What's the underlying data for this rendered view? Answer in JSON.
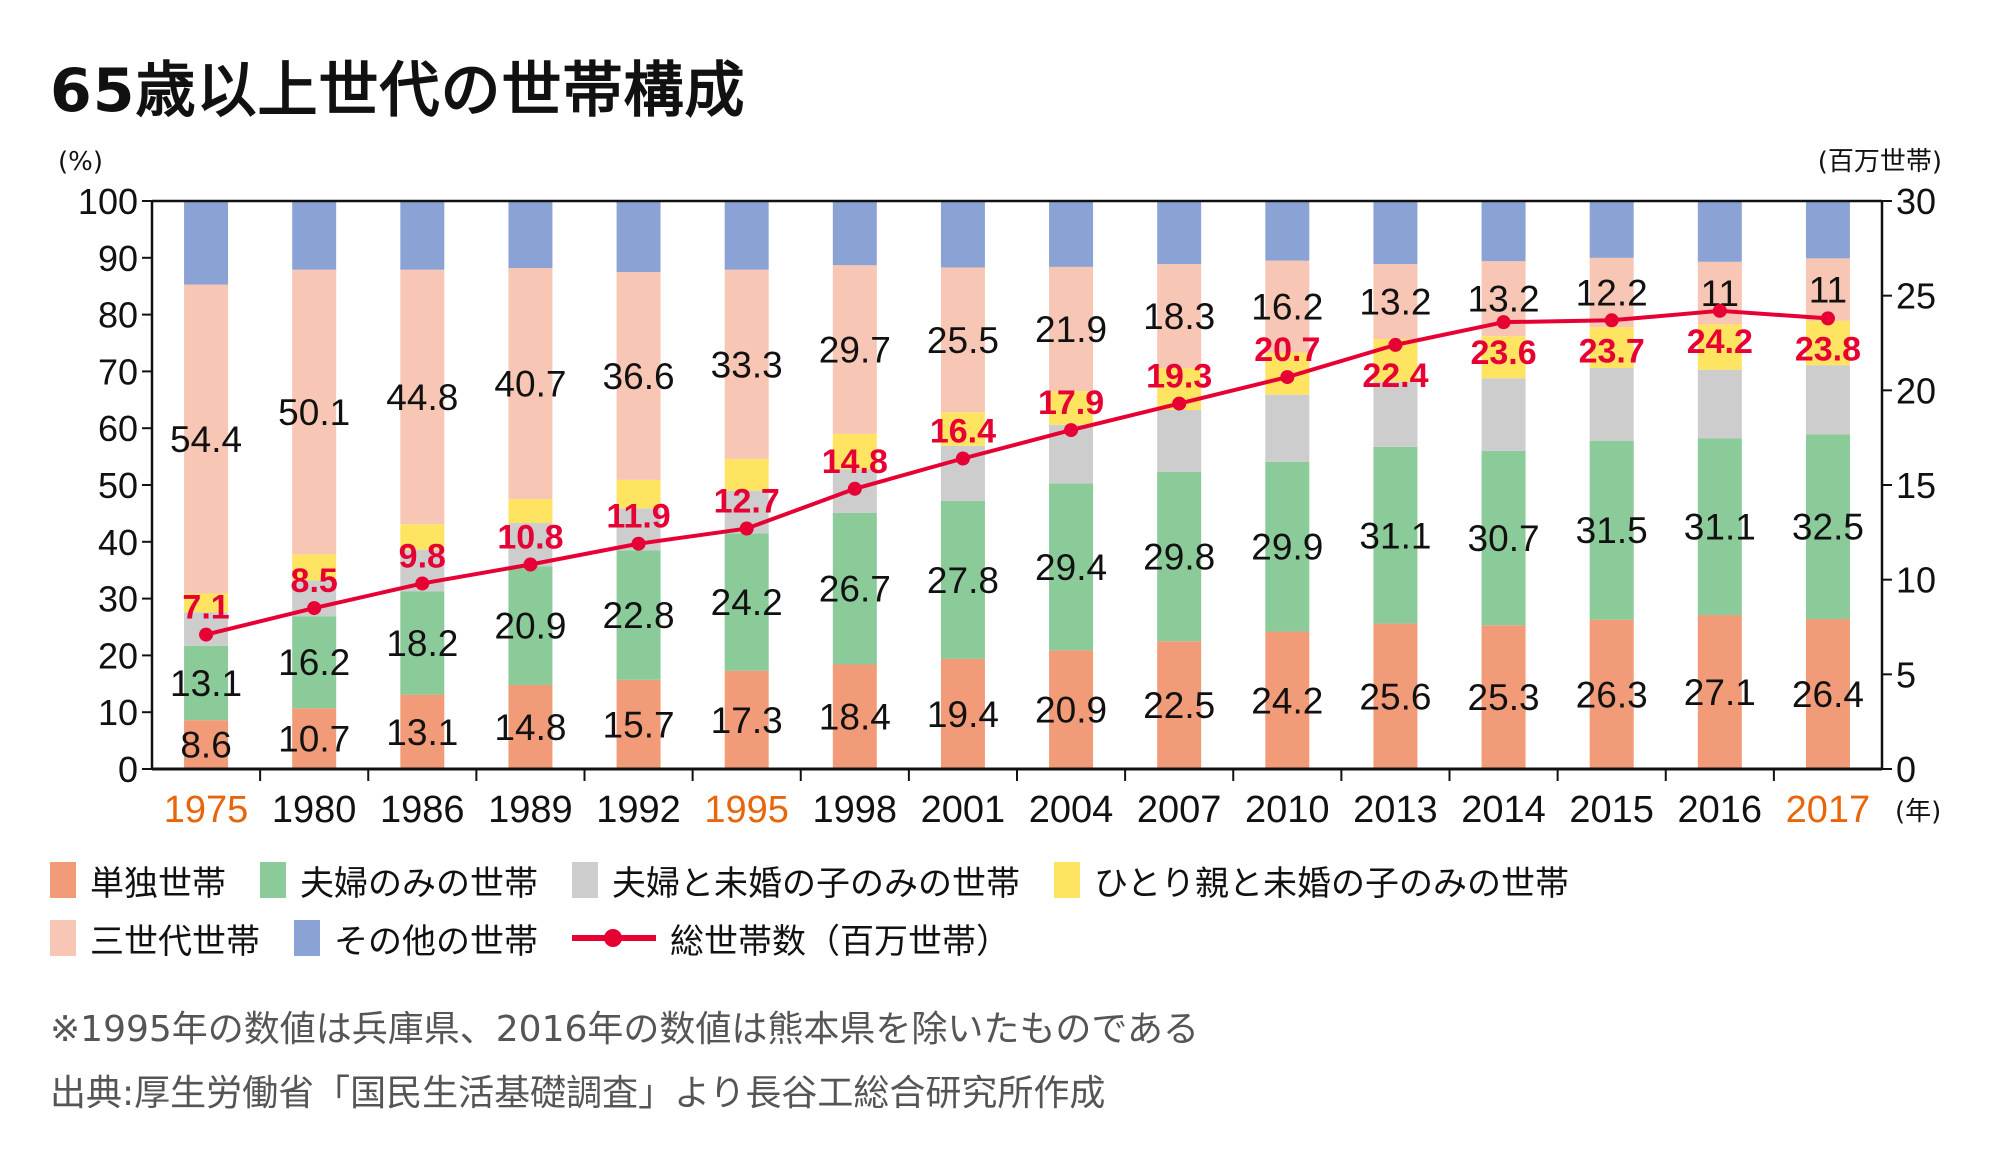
{
  "title": "65歳以上世代の世帯構成",
  "chart_data": {
    "type": "bar",
    "subtype": "stacked-100-percent-with-line",
    "title": "65歳以上世代の世帯構成",
    "xlabel": "(年)",
    "ylabel_left": "(%)",
    "ylabel_right": "(百万世帯)",
    "ylim_left": [
      0,
      100
    ],
    "yticks_left": [
      0,
      10,
      20,
      30,
      40,
      50,
      60,
      70,
      80,
      90,
      100
    ],
    "ylim_right": [
      0,
      30
    ],
    "yticks_right": [
      0,
      5,
      10,
      15,
      20,
      25,
      30
    ],
    "grid": false,
    "legend_position": "bottom",
    "categories": [
      "1975",
      "1980",
      "1986",
      "1989",
      "1992",
      "1995",
      "1998",
      "2001",
      "2004",
      "2007",
      "2010",
      "2013",
      "2014",
      "2015",
      "2016",
      "2017"
    ],
    "highlighted_categories": [
      "1975",
      "1995",
      "2017"
    ],
    "highlight_color": "#e8650a",
    "series": [
      {
        "name": "単独世帯",
        "color": "#f29b78",
        "labeled": true,
        "values": [
          8.6,
          10.7,
          13.1,
          14.8,
          15.7,
          17.3,
          18.4,
          19.4,
          20.9,
          22.5,
          24.2,
          25.6,
          25.3,
          26.3,
          27.1,
          26.4
        ]
      },
      {
        "name": "夫婦のみの世帯",
        "color": "#8bca99",
        "labeled": true,
        "values": [
          13.1,
          16.2,
          18.2,
          20.9,
          22.8,
          24.2,
          26.7,
          27.8,
          29.4,
          29.8,
          29.9,
          31.1,
          30.7,
          31.5,
          31.1,
          32.5
        ]
      },
      {
        "name": "夫婦と未婚の子のみの世帯",
        "color": "#cccdcc",
        "labeled": false,
        "estimated": true,
        "values": [
          5.9,
          6.3,
          7.3,
          7.6,
          7.4,
          7.5,
          7.7,
          9.7,
          10.3,
          10.9,
          11.8,
          11.5,
          12.8,
          12.8,
          12.1,
          12.2
        ]
      },
      {
        "name": "ひとり親と未婚の子のみの世帯",
        "color": "#ffe462",
        "labeled": false,
        "estimated": true,
        "values": [
          3.3,
          4.6,
          4.5,
          4.2,
          5.0,
          5.6,
          6.2,
          5.9,
          5.9,
          7.4,
          7.4,
          7.5,
          7.4,
          7.2,
          8.0,
          7.8
        ]
      },
      {
        "name": "三世代世帯",
        "color": "#f7c6b4",
        "labeled": true,
        "values": [
          54.4,
          50.1,
          44.8,
          40.7,
          36.6,
          33.3,
          29.7,
          25.5,
          21.9,
          18.3,
          16.2,
          13.2,
          13.2,
          12.2,
          11.0,
          11.0
        ]
      },
      {
        "name": "その他の世帯",
        "color": "#8ba3d4",
        "labeled": false,
        "estimated": true,
        "values": [
          14.7,
          12.1,
          12.1,
          11.8,
          12.5,
          12.1,
          11.3,
          11.7,
          11.6,
          11.1,
          10.5,
          11.1,
          10.6,
          10.0,
          10.7,
          10.1
        ]
      }
    ],
    "line_series": {
      "name": "総世帯数（百万世帯）",
      "axis": "right",
      "color": "#e60033",
      "values": [
        7.1,
        8.5,
        9.8,
        10.8,
        11.9,
        12.7,
        14.8,
        16.4,
        17.9,
        19.3,
        20.7,
        22.4,
        23.6,
        23.7,
        24.2,
        23.8
      ]
    }
  },
  "legend": [
    {
      "label": "単独世帯",
      "kind": "swatch",
      "color": "#f29b78"
    },
    {
      "label": "夫婦のみの世帯",
      "kind": "swatch",
      "color": "#8bca99"
    },
    {
      "label": "夫婦と未婚の子のみの世帯",
      "kind": "swatch",
      "color": "#cccdcc"
    },
    {
      "label": "ひとり親と未婚の子のみの世帯",
      "kind": "swatch",
      "color": "#ffe462"
    },
    {
      "label": "三世代世帯",
      "kind": "swatch",
      "color": "#f7c6b4"
    },
    {
      "label": "その他の世帯",
      "kind": "swatch",
      "color": "#8ba3d4"
    },
    {
      "label": "総世帯数（百万世帯）",
      "kind": "line",
      "color": "#e60033"
    }
  ],
  "notes": {
    "footnote": "※1995年の数値は兵庫県、2016年の数値は熊本県を除いたものである",
    "source": "出典:厚生労働省「国民生活基礎調査」より長谷工総合研究所作成"
  }
}
